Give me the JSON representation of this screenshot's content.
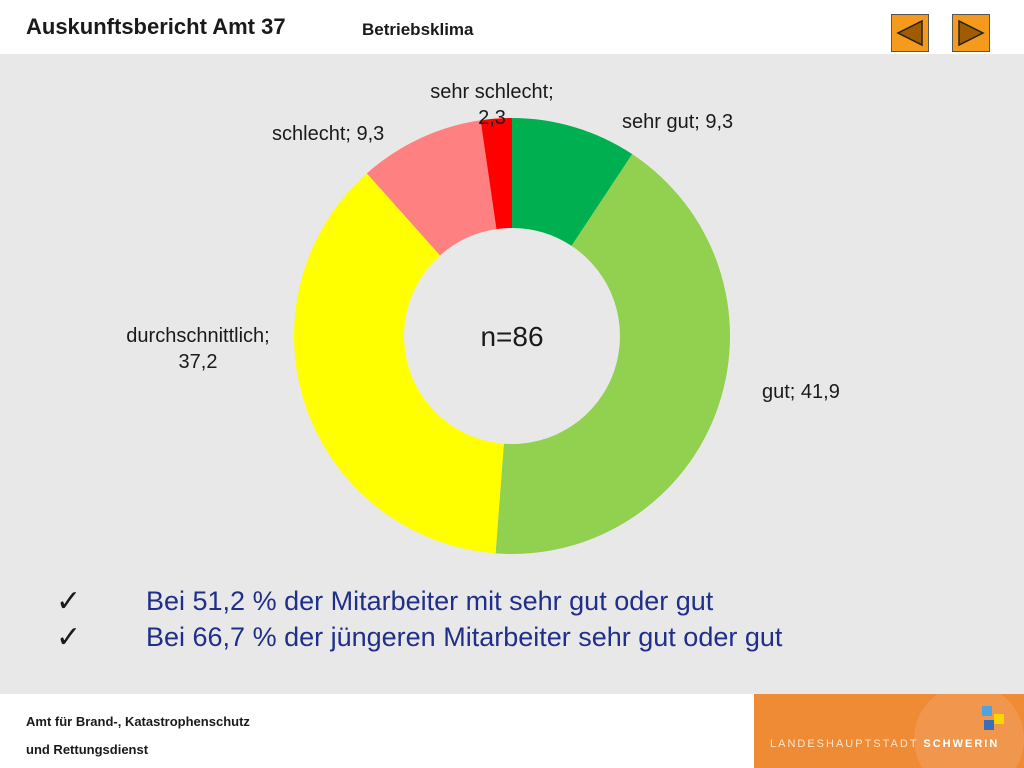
{
  "header": {
    "title": "Auskunftsbericht Amt 37",
    "subtitle": "Betriebsklima",
    "prev_icon": "triangle-left-icon",
    "next_icon": "triangle-right-icon"
  },
  "chart_data": {
    "type": "pie",
    "donut": true,
    "center_label": "n=86",
    "slices": [
      {
        "label": "sehr gut; 9,3",
        "value": 9.3,
        "color": "#00b050"
      },
      {
        "label": "gut; 41,9",
        "value": 41.9,
        "color": "#92d050"
      },
      {
        "label": "durchschnittlich; 37,2",
        "value": 37.2,
        "color": "#ffff00"
      },
      {
        "label": "schlecht; 9,3",
        "value": 9.3,
        "color": "#ff8080"
      },
      {
        "label": "sehr schlecht; 2,3",
        "value": 2.3,
        "color": "#ff0000"
      }
    ]
  },
  "bullets": [
    "Bei 51,2 % der Mitarbeiter mit sehr gut oder gut",
    "Bei 66,7 % der jüngeren Mitarbeiter sehr gut oder gut"
  ],
  "bullet_icon": "check-icon",
  "footer": {
    "line1": "Amt für Brand-, Katastrophenschutz",
    "line2": "und  Rettungsdienst",
    "logo_text_prefix": "LANDESHAUPTSTADT",
    "logo_text_strong": "SCHWERIN"
  }
}
